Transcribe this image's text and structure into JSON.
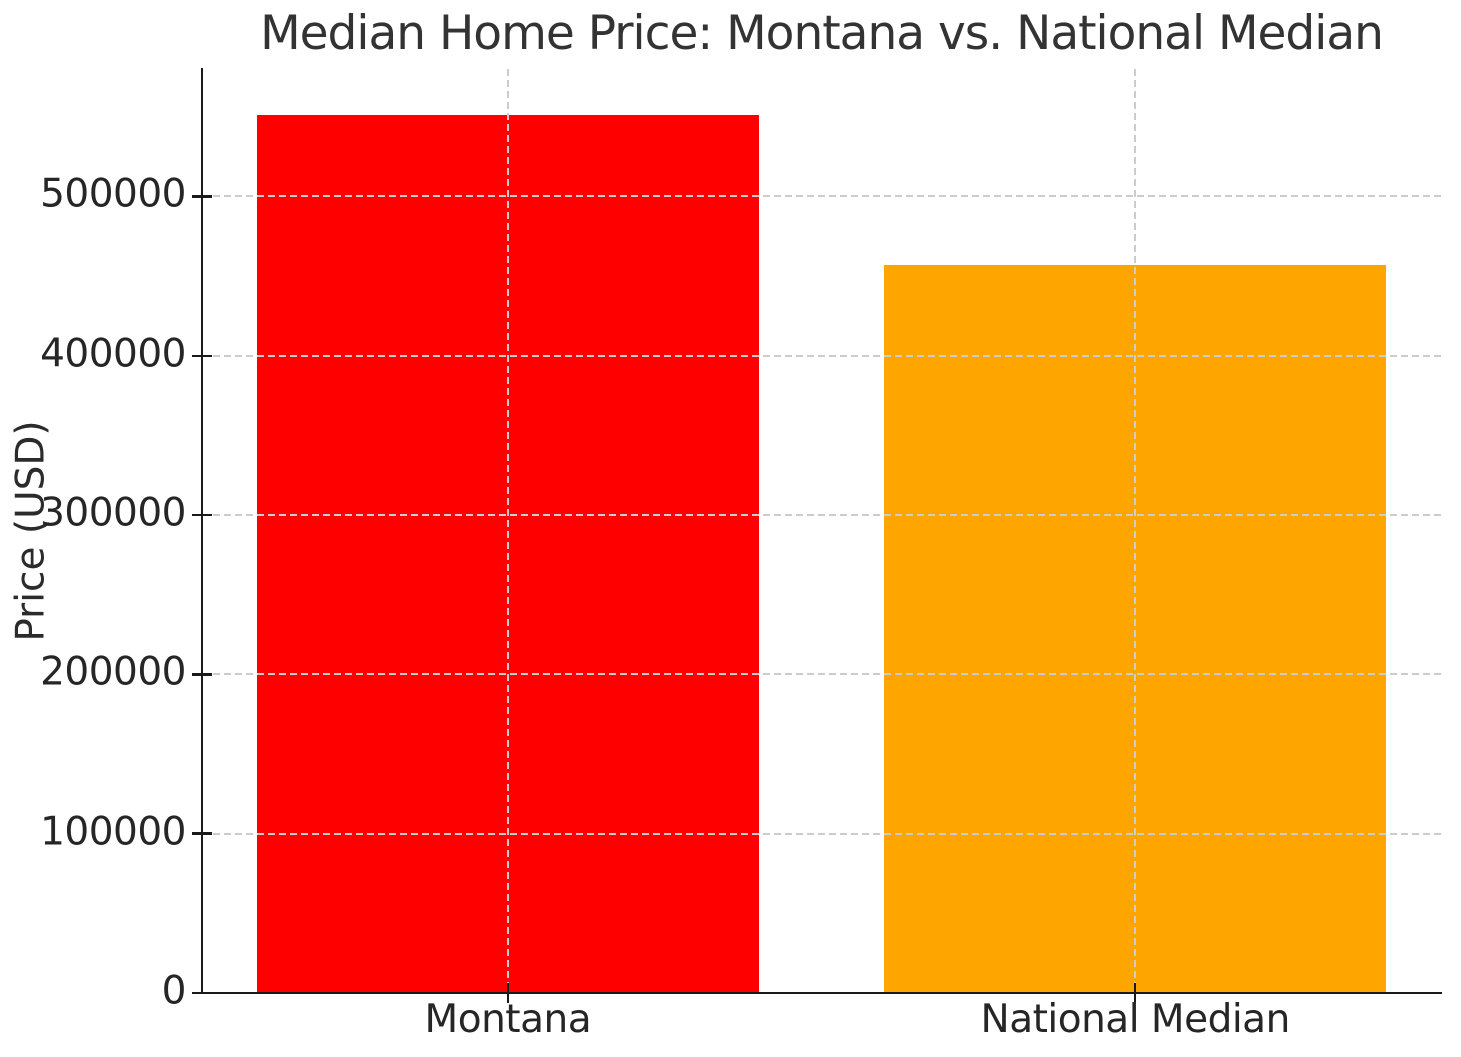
{
  "chart_data": {
    "type": "bar",
    "title": "Median Home Price: Montana vs. National Median",
    "xlabel": "",
    "ylabel": "Price (USD)",
    "categories": [
      "Montana",
      "National Median"
    ],
    "values": [
      551000,
      457000
    ],
    "bar_colors": [
      "#ff0000",
      "#ffa500"
    ],
    "yticks": [
      0,
      100000,
      200000,
      300000,
      400000,
      500000
    ],
    "ylim": [
      0,
      580000
    ],
    "bar_width_fraction": 0.8,
    "grid": {
      "style": "dashed",
      "color": "#cccccc",
      "horizontal": true,
      "vertical": true,
      "drawn_above_bars": true
    },
    "legend": "none"
  },
  "figure": {
    "background_color": "#ffffff",
    "spine_color": "#1a1a1a",
    "text_color": "#262626",
    "title_color": "#333333"
  }
}
